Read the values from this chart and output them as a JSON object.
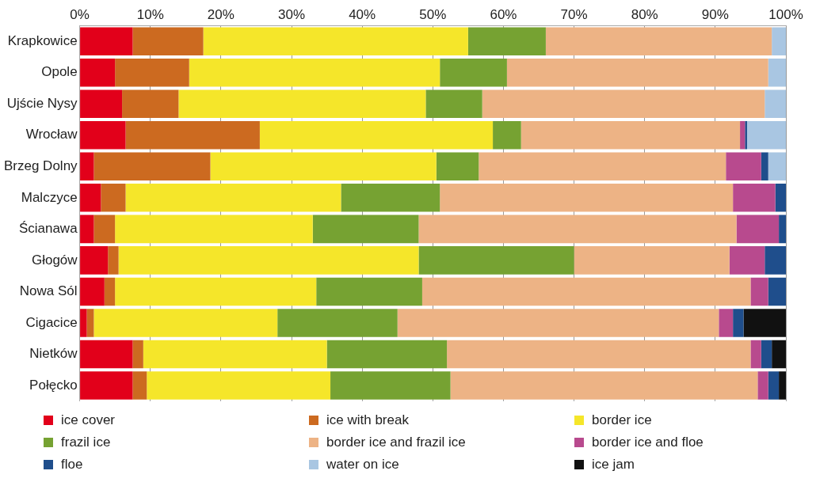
{
  "chart_data": {
    "type": "bar",
    "orientation": "horizontal",
    "stacked": true,
    "categories": [
      "Krapkowice",
      "Opole",
      "Ujście Nysy",
      "Wrocław",
      "Brzeg Dolny",
      "Malczyce",
      "Ścianawa",
      "Głogów",
      "Nowa Sól",
      "Cigacice",
      "Nietków",
      "Połęcko"
    ],
    "xlim": [
      0,
      100
    ],
    "xticks": [
      {
        "value": 0,
        "label": "0%"
      },
      {
        "value": 10,
        "label": "10%"
      },
      {
        "value": 20,
        "label": "20%"
      },
      {
        "value": 30,
        "label": "30%"
      },
      {
        "value": 40,
        "label": "40%"
      },
      {
        "value": 50,
        "label": "50%"
      },
      {
        "value": 60,
        "label": "60%"
      },
      {
        "value": 70,
        "label": "70%"
      },
      {
        "value": 80,
        "label": "80%"
      },
      {
        "value": 90,
        "label": "90%"
      },
      {
        "value": 100,
        "label": "100%"
      }
    ],
    "grid": "x",
    "legend": "bottom",
    "series": [
      {
        "name": "ice cover",
        "color": "#e2001a",
        "values": [
          7.5,
          5,
          6,
          6.5,
          2,
          3,
          2,
          4,
          3.5,
          1,
          7.5,
          7.5
        ]
      },
      {
        "name": "ice with break",
        "color": "#cc6a20",
        "values": [
          10,
          10.5,
          8,
          19,
          16.5,
          3.5,
          3,
          1.5,
          1.5,
          1,
          1.5,
          2
        ]
      },
      {
        "name": "border ice",
        "color": "#f5e62a",
        "values": [
          37.5,
          35.5,
          35,
          33,
          32,
          30.5,
          28,
          42.5,
          28.5,
          26,
          26,
          26
        ]
      },
      {
        "name": "frazil ice",
        "color": "#76a232",
        "values": [
          11,
          9.5,
          8,
          4,
          6,
          14,
          15,
          22,
          15,
          17,
          17,
          17
        ]
      },
      {
        "name": "border ice and frazil ice",
        "color": "#edb385",
        "values": [
          32,
          37,
          40,
          31,
          35,
          41.5,
          45,
          22,
          46.5,
          45.5,
          43,
          43.5
        ]
      },
      {
        "name": "border ice and floe",
        "color": "#b84a8e",
        "values": [
          0,
          0,
          0,
          0.7,
          5,
          6,
          6,
          5,
          2.5,
          2,
          1.5,
          1.5
        ]
      },
      {
        "name": "floe",
        "color": "#1f4e8c",
        "values": [
          0,
          0,
          0,
          0.3,
          1,
          1.5,
          1,
          3,
          2.5,
          1.5,
          1.5,
          1.5
        ]
      },
      {
        "name": "water on ice",
        "color": "#a9c6e2",
        "values": [
          2,
          2.5,
          3,
          5.5,
          2.5,
          0,
          0,
          0,
          0,
          0,
          0,
          0
        ]
      },
      {
        "name": "ice jam",
        "color": "#111111",
        "values": [
          0,
          0,
          0,
          0,
          0,
          0,
          0,
          0,
          0,
          6,
          2,
          1
        ]
      }
    ]
  }
}
